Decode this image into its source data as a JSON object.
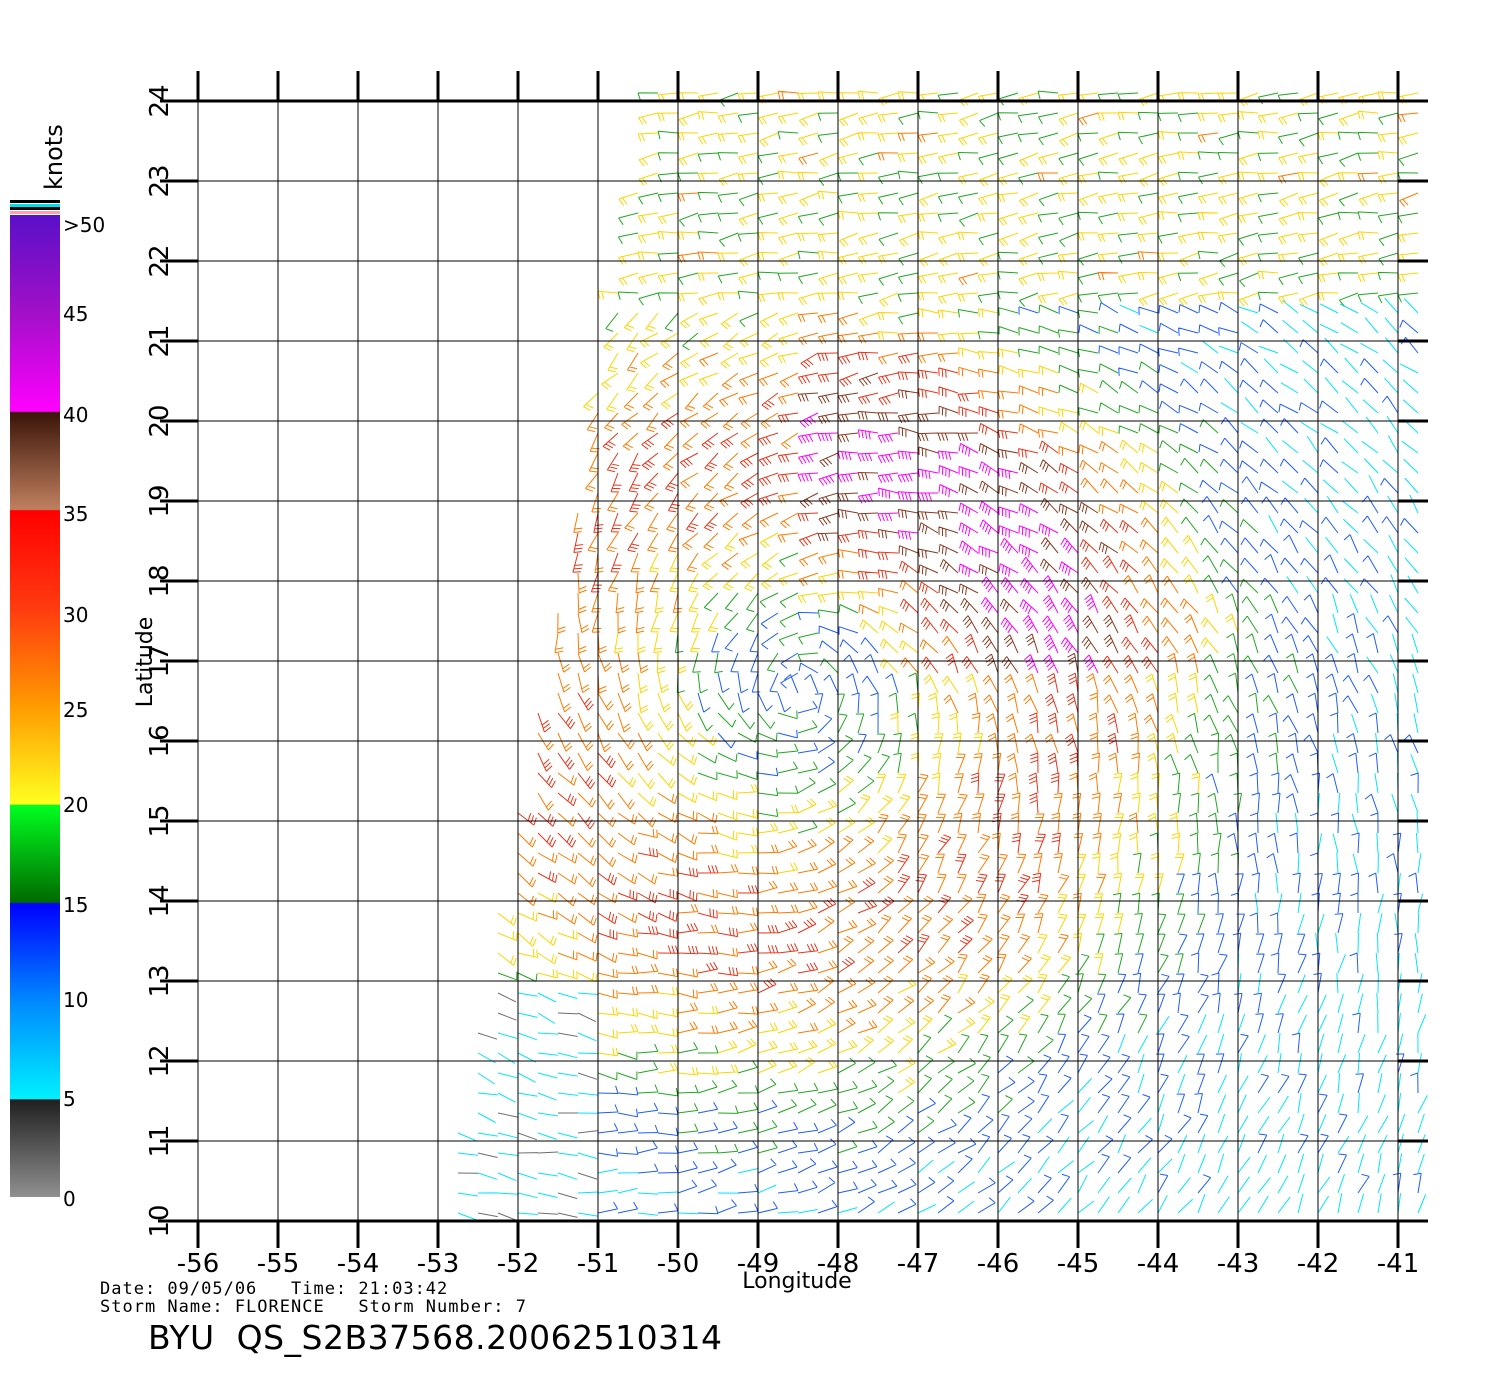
{
  "legend": {
    "unit": "knots",
    "labels": [
      ">50",
      "45",
      "40",
      "35",
      "30",
      "25",
      "20",
      "15",
      "10",
      "5",
      "0"
    ],
    "colors": {
      "lt5": "#6e6e6e",
      "5to10": "#00e5ff",
      "10to15": "#1e5cff",
      "15to20": "#1fa81f",
      "20to25": "#ffd400",
      "25to30": "#ff7a00",
      "30to35": "#e8341a",
      "35to40": "#8a3a20",
      "40to45": "#ff00ff",
      "gt45": "#9b11c9"
    }
  },
  "map": {
    "x_axis_label": "Longitude",
    "y_axis_label": "Latitude",
    "lon_ticks": [
      "-56",
      "-55",
      "-54",
      "-53",
      "-52",
      "-51",
      "-50",
      "-49",
      "-48",
      "-47",
      "-46",
      "-45",
      "-44",
      "-43",
      "-42",
      "-41"
    ],
    "lat_ticks": [
      "10",
      "11",
      "12",
      "13",
      "14",
      "15",
      "16",
      "17",
      "18",
      "19",
      "20",
      "21",
      "22",
      "23",
      "24"
    ],
    "lon_range": [
      -56,
      -41
    ],
    "lat_range": [
      10,
      24
    ],
    "storm_center": {
      "lon": -48.5,
      "lat": 16.6
    },
    "swath_west_edge_lon_at_lat10": -53,
    "swath_west_edge_lon_at_lat24": -50.3
  },
  "footer": {
    "line1": "Date: 09/05/06   Time: 21:03:42",
    "line2": "Storm Name: FLORENCE   Storm Number: 7",
    "product": "BYU  QS_S2B37568.20062510314"
  }
}
